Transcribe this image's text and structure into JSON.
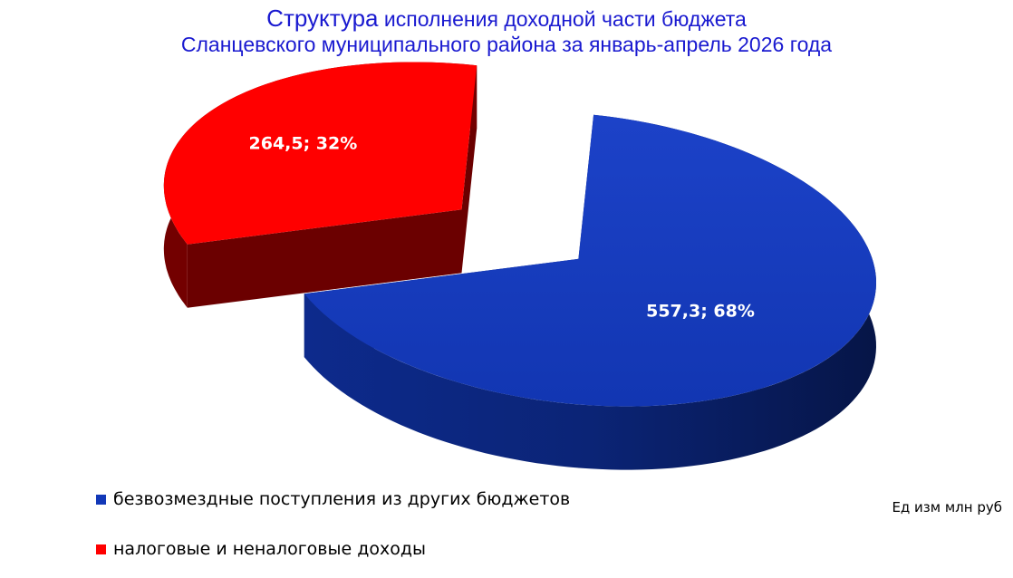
{
  "chart_data": {
    "type": "pie",
    "title_line1_word": "Структура",
    "title_line1_rest": "исполнения доходной части бюджета",
    "title_line2": "Сланцевского муниципального района за январь-апрель 2026 года",
    "unit_note": "Ед изм млн руб",
    "series": [
      {
        "name": "безвозмездные поступления из других бюджетов",
        "value": 557.3,
        "percent": 68,
        "label": "557,3; 68%",
        "color": "#1238b8"
      },
      {
        "name": "налоговые и неналоговые доходы",
        "value": 264.5,
        "percent": 32,
        "label": "264,5; 32%",
        "color": "#ff0000"
      }
    ],
    "legend_position": "bottom-left"
  }
}
